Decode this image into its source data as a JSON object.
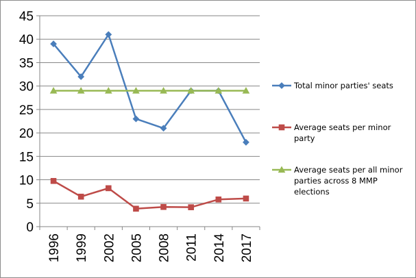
{
  "chart_data": {
    "type": "line",
    "title": "",
    "xlabel": "",
    "ylabel": "",
    "categories": [
      "1996",
      "1999",
      "2002",
      "2005",
      "2008",
      "2011",
      "2014",
      "2017"
    ],
    "ylim": [
      0,
      45
    ],
    "yticks": [
      0,
      5,
      10,
      15,
      20,
      25,
      30,
      35,
      40,
      45
    ],
    "grid": "horizontal",
    "legend_position": "right",
    "x_tick_rotation": "vertical",
    "series": [
      {
        "name": "Total minor parties' seats",
        "color": "#4a7ebb",
        "marker": "diamond",
        "values": [
          39,
          32,
          41,
          23,
          21,
          29,
          29,
          18
        ]
      },
      {
        "name": "Average seats per minor party",
        "legend_lines": [
          "Average seats per minor",
          "party"
        ],
        "color": "#be4b48",
        "marker": "square",
        "values": [
          9.75,
          6.4,
          8.2,
          3.83,
          4.2,
          4.14,
          5.8,
          6
        ]
      },
      {
        "name": "Average seats per all minor parties across 8 MMP elections",
        "legend_lines": [
          "Average seats per all minor",
          "parties across 8 MMP",
          "elections"
        ],
        "color": "#98b954",
        "marker": "triangle",
        "values": [
          29,
          29,
          29,
          29,
          29,
          29,
          29,
          29
        ]
      }
    ]
  }
}
